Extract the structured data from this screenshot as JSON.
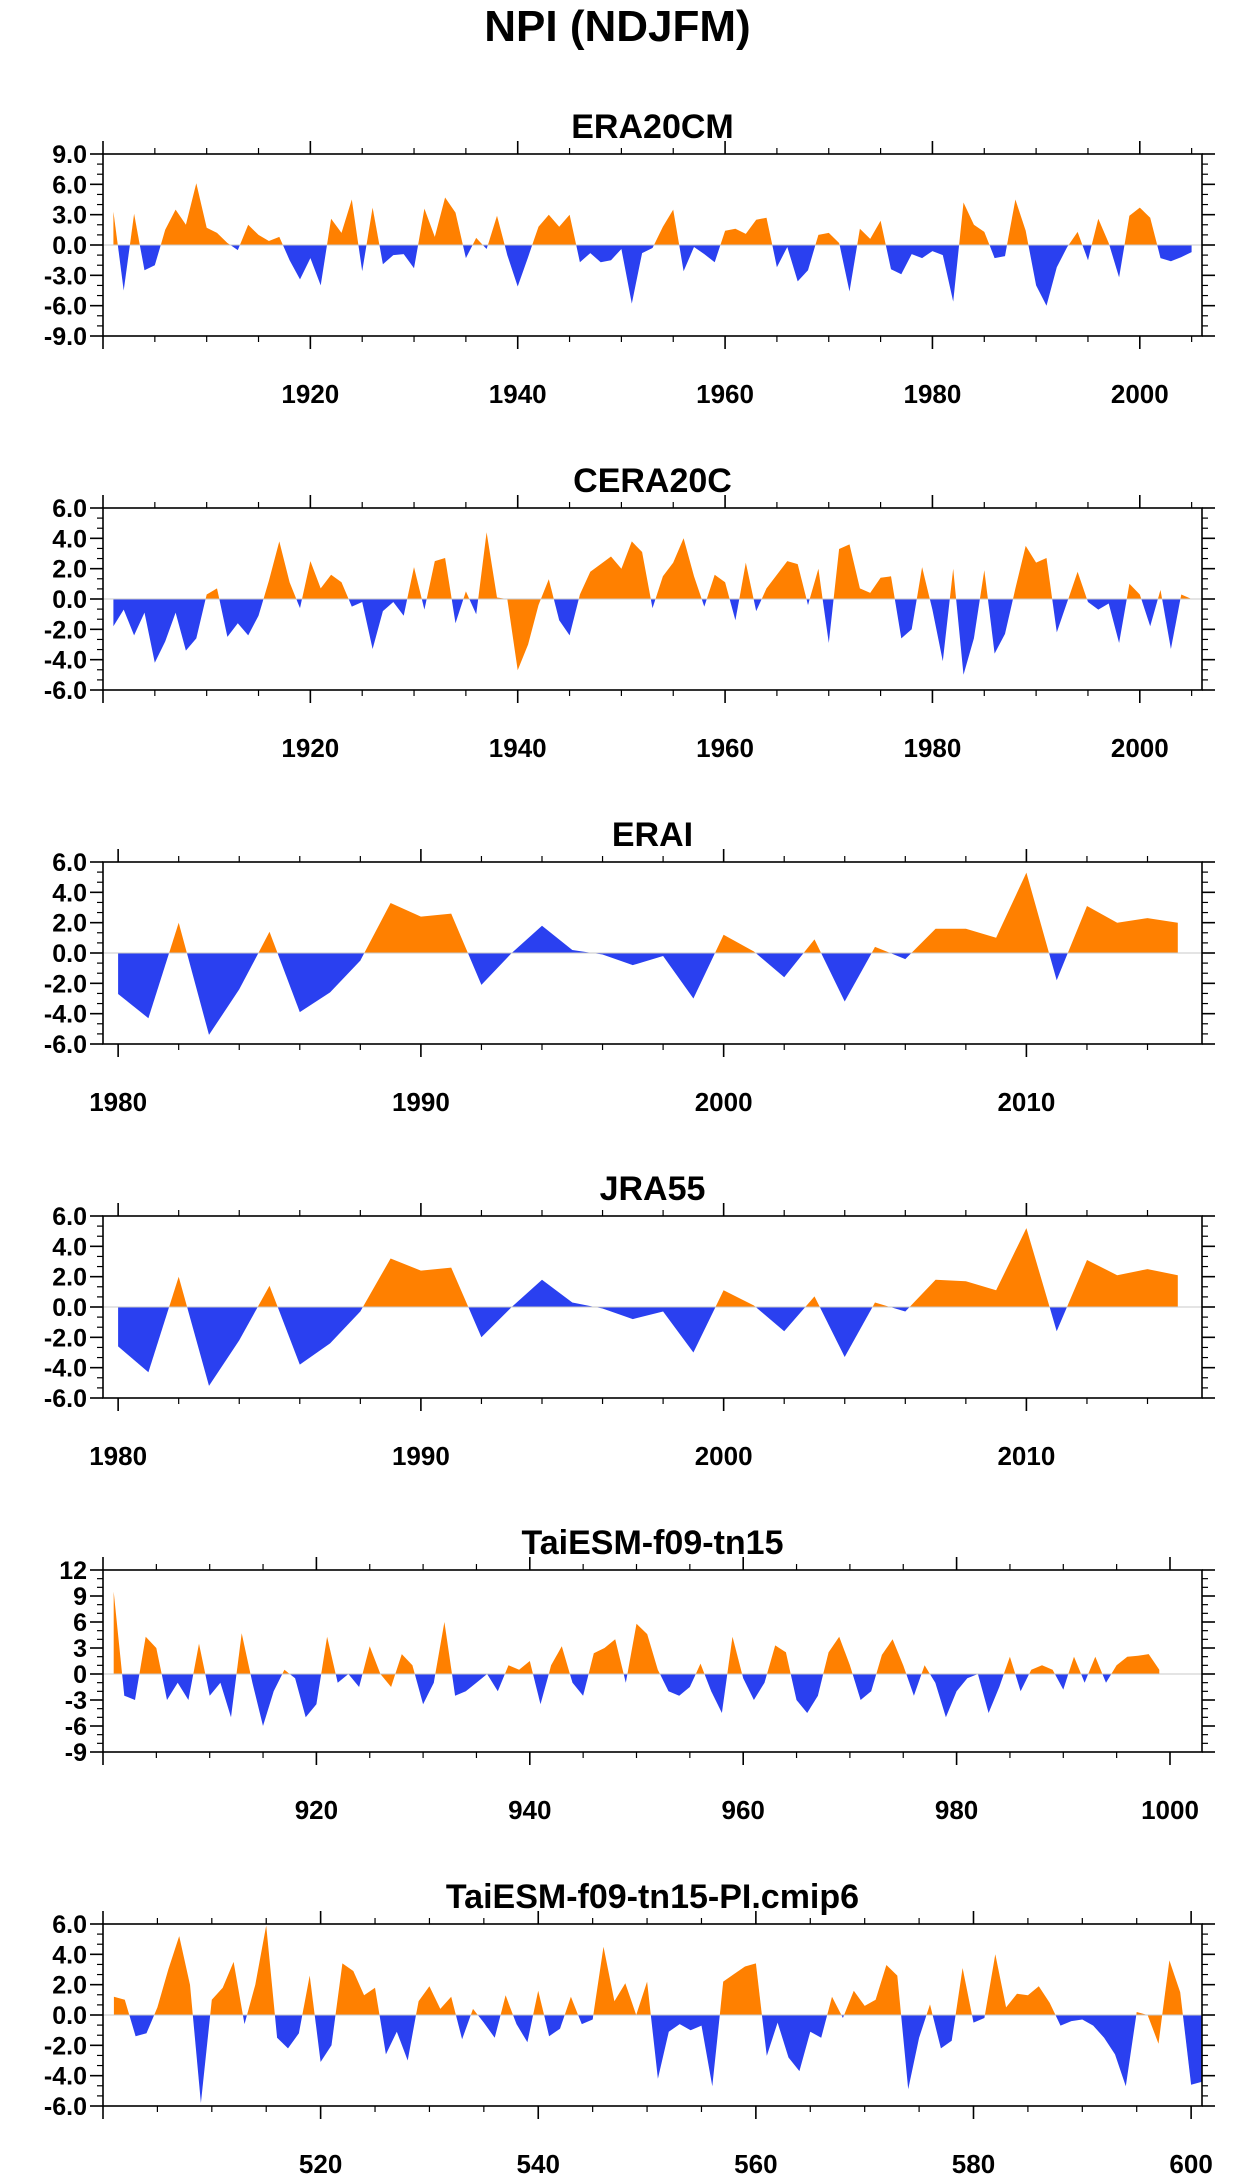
{
  "title": "NPI (NDJFM)",
  "colors": {
    "positive": "#ff8000",
    "negative": "#2a40f0",
    "axis": "#000000"
  },
  "chart_data": [
    {
      "type": "area",
      "title": "ERA20CM",
      "xlim": [
        1900,
        2006
      ],
      "ylim": [
        -9,
        9
      ],
      "yticks": [
        -9,
        -6,
        -3,
        0,
        3,
        6,
        9
      ],
      "ytick_labels": [
        "-9.0",
        "-6.0",
        "-3.0",
        "0.0",
        "3.0",
        "6.0",
        "9.0"
      ],
      "xticks": [
        1920,
        1940,
        1960,
        1980,
        2000
      ],
      "xtick_labels": [
        "1920",
        "1940",
        "1960",
        "1980",
        "2000"
      ],
      "x_start": 1901,
      "values": [
        3.3,
        -4.5,
        3.1,
        -2.5,
        -2.0,
        1.5,
        3.5,
        2.0,
        6.1,
        1.7,
        1.2,
        0.2,
        -0.5,
        2.0,
        1.0,
        0.4,
        0.8,
        -1.5,
        -3.4,
        -1.3,
        -4.0,
        2.6,
        1.2,
        4.5,
        -2.6,
        3.7,
        -1.9,
        -1.0,
        -0.9,
        -2.3,
        3.6,
        0.8,
        4.7,
        3.2,
        -1.3,
        0.7,
        -0.4,
        2.9,
        -1.0,
        -4.1,
        -1.2,
        1.8,
        3.0,
        1.8,
        3.0,
        -1.7,
        -0.8,
        -1.7,
        -1.5,
        -0.4,
        -5.8,
        -0.8,
        -0.3,
        1.8,
        3.5,
        -2.6,
        -0.2,
        -0.9,
        -1.7,
        1.4,
        1.6,
        1.1,
        2.5,
        2.7,
        -2.2,
        -0.2,
        -3.6,
        -2.5,
        1.0,
        1.2,
        0.2,
        -4.6,
        1.6,
        0.6,
        2.4,
        -2.4,
        -2.9,
        -0.9,
        -1.3,
        -0.6,
        -1.0,
        -5.6,
        4.2,
        2.0,
        1.3,
        -1.3,
        -1.1,
        4.5,
        1.4,
        -4.0,
        -6.0,
        -2.2,
        -0.2,
        1.3,
        -1.5,
        2.6,
        0.2,
        -3.2,
        2.9,
        3.7,
        2.7,
        -1.3,
        -1.6,
        -1.2,
        -0.7
      ]
    },
    {
      "type": "area",
      "title": "CERA20C",
      "xlim": [
        1900,
        2006
      ],
      "ylim": [
        -6,
        6
      ],
      "yticks": [
        -6,
        -4,
        -2,
        0,
        2,
        4,
        6
      ],
      "ytick_labels": [
        "-6.0",
        "-4.0",
        "-2.0",
        "0.0",
        "2.0",
        "4.0",
        "6.0"
      ],
      "xticks": [
        1920,
        1940,
        1960,
        1980,
        2000
      ],
      "xtick_labels": [
        "1920",
        "1940",
        "1960",
        "1980",
        "2000"
      ],
      "x_start": 1901,
      "values": [
        -1.8,
        -0.7,
        -2.4,
        -0.9,
        -4.2,
        -2.8,
        -0.9,
        -3.4,
        -2.6,
        0.3,
        0.7,
        -2.5,
        -1.6,
        -2.4,
        -1.1,
        1.2,
        3.8,
        1.1,
        -0.6,
        2.5,
        0.7,
        1.6,
        1.1,
        -0.5,
        -0.2,
        -3.3,
        -0.8,
        -0.2,
        -1.1,
        2.1,
        -0.7,
        2.5,
        2.7,
        -1.6,
        0.5,
        -1.0,
        4.4,
        0.1,
        0.0,
        -4.7,
        -3.0,
        -0.4,
        1.3,
        -1.4,
        -2.4,
        0.3,
        1.8,
        2.3,
        2.8,
        2.0,
        3.8,
        3.1,
        -0.6,
        1.5,
        2.4,
        4.0,
        1.5,
        -0.5,
        1.6,
        1.1,
        -1.4,
        2.4,
        -0.8,
        0.7,
        1.6,
        2.5,
        2.3,
        -0.4,
        2.0,
        -2.9,
        3.3,
        3.6,
        0.7,
        0.4,
        1.4,
        1.5,
        -2.6,
        -2.0,
        2.1,
        -0.7,
        -4.1,
        2.0,
        -5.0,
        -2.6,
        1.9,
        -3.6,
        -2.3,
        0.7,
        3.5,
        2.4,
        2.7,
        -2.2,
        -0.2,
        1.8,
        -0.2,
        -0.7,
        -0.3,
        -2.9,
        1.0,
        0.3,
        -1.8,
        0.6,
        -3.3,
        0.3,
        0.0
      ]
    },
    {
      "type": "area",
      "title": "ERAI",
      "xlim": [
        1979.5,
        2015.8
      ],
      "ylim": [
        -6,
        6
      ],
      "yticks": [
        -6,
        -4,
        -2,
        0,
        2,
        4,
        6
      ],
      "ytick_labels": [
        "-6.0",
        "-4.0",
        "-2.0",
        "0.0",
        "2.0",
        "4.0",
        "6.0"
      ],
      "xticks": [
        1980,
        1990,
        2000,
        2010
      ],
      "xtick_labels": [
        "1980",
        "1990",
        "2000",
        "2010"
      ],
      "x_start": 1980,
      "values": [
        -2.7,
        -4.3,
        2.0,
        -5.4,
        -2.4,
        1.4,
        -3.9,
        -2.6,
        -0.5,
        3.3,
        2.4,
        2.6,
        -2.1,
        0.0,
        1.8,
        0.2,
        -0.1,
        -0.8,
        -0.2,
        -3.0,
        1.2,
        0.1,
        -1.6,
        0.9,
        -3.2,
        0.4,
        -0.4,
        1.6,
        1.6,
        1.0,
        5.3,
        -1.8,
        3.1,
        2.0,
        2.3,
        2.0
      ]
    },
    {
      "type": "area",
      "title": "JRA55",
      "xlim": [
        1979.5,
        2015.8
      ],
      "ylim": [
        -6,
        6
      ],
      "yticks": [
        -6,
        -4,
        -2,
        0,
        2,
        4,
        6
      ],
      "ytick_labels": [
        "-6.0",
        "-4.0",
        "-2.0",
        "0.0",
        "2.0",
        "4.0",
        "6.0"
      ],
      "xticks": [
        1980,
        1990,
        2000,
        2010
      ],
      "xtick_labels": [
        "1980",
        "1990",
        "2000",
        "2010"
      ],
      "x_start": 1980,
      "values": [
        -2.6,
        -4.3,
        2.0,
        -5.2,
        -2.2,
        1.4,
        -3.8,
        -2.4,
        -0.3,
        3.2,
        2.4,
        2.6,
        -2.0,
        0.0,
        1.8,
        0.3,
        -0.1,
        -0.8,
        -0.3,
        -3.0,
        1.1,
        0.1,
        -1.6,
        0.7,
        -3.3,
        0.3,
        -0.3,
        1.8,
        1.7,
        1.1,
        5.2,
        -1.6,
        3.1,
        2.1,
        2.5,
        2.1
      ]
    },
    {
      "type": "area",
      "title": "TaiESM-f09-tn15",
      "xlim": [
        900,
        1003
      ],
      "ylim": [
        -9,
        12
      ],
      "yticks": [
        -9,
        -6,
        -3,
        0,
        3,
        6,
        9,
        12
      ],
      "ytick_labels": [
        "-9",
        "-6",
        "-3",
        "0",
        "3",
        "6",
        "9",
        "12"
      ],
      "xticks": [
        920,
        940,
        960,
        980,
        1000
      ],
      "xtick_labels": [
        "920",
        "940",
        "960",
        "980",
        "1000"
      ],
      "x_start": 901,
      "values": [
        9.5,
        -2.5,
        -3.0,
        4.3,
        3.0,
        -3.0,
        -1.0,
        -3.0,
        3.5,
        -2.5,
        -1.0,
        -5.0,
        4.7,
        -1.0,
        -6.0,
        -2.0,
        0.5,
        -0.5,
        -5.0,
        -3.5,
        4.3,
        -1.0,
        0.0,
        -1.5,
        3.2,
        0.0,
        -1.5,
        2.3,
        1.0,
        -3.5,
        -1.0,
        6.0,
        -2.5,
        -2.0,
        -1.0,
        0.0,
        -2.0,
        1.0,
        0.5,
        1.5,
        -3.5,
        1.0,
        3.2,
        -1.0,
        -2.5,
        2.4,
        3.0,
        4.0,
        -1.0,
        5.8,
        4.6,
        0.5,
        -2.0,
        -2.5,
        -1.5,
        1.2,
        -2.0,
        -4.5,
        4.3,
        -0.5,
        -3.0,
        -1.0,
        3.3,
        2.5,
        -3.0,
        -4.5,
        -2.5,
        2.5,
        4.3,
        1.0,
        -3.0,
        -2.0,
        2.2,
        4.0,
        1.0,
        -2.5,
        1.0,
        -1.0,
        -5.0,
        -2.0,
        -0.5,
        0.0,
        -4.5,
        -1.5,
        2.0,
        -2.0,
        0.5,
        1.0,
        0.5,
        -1.8,
        2.0,
        -1.0,
        2.0,
        -1.0,
        1.0,
        2.0,
        2.1,
        2.3,
        0.5
      ]
    },
    {
      "type": "area",
      "title": "TaiESM-f09-tn15-PI.cmip6",
      "xlim": [
        500,
        601
      ],
      "ylim": [
        -6,
        6
      ],
      "yticks": [
        -6,
        -4,
        -2,
        0,
        2,
        4,
        6
      ],
      "ytick_labels": [
        "-6.0",
        "-4.0",
        "-2.0",
        "0.0",
        "2.0",
        "4.0",
        "6.0"
      ],
      "xticks": [
        520,
        540,
        560,
        580,
        600
      ],
      "xtick_labels": [
        "520",
        "540",
        "560",
        "580",
        "600"
      ],
      "x_start": 501,
      "values": [
        1.2,
        1.0,
        -1.4,
        -1.2,
        0.5,
        3.0,
        5.2,
        2.0,
        -5.8,
        1.0,
        1.8,
        3.5,
        -0.6,
        2.0,
        5.9,
        -1.5,
        -2.2,
        -1.2,
        2.6,
        -3.1,
        -2.0,
        3.4,
        2.9,
        1.3,
        1.8,
        -2.6,
        -1.1,
        -3.0,
        0.9,
        1.9,
        0.4,
        1.2,
        -1.6,
        0.4,
        -0.5,
        -1.5,
        1.3,
        -0.6,
        -1.8,
        1.6,
        -1.4,
        -0.9,
        1.2,
        -0.6,
        -0.3,
        4.5,
        0.9,
        2.1,
        0.0,
        2.2,
        -4.2,
        -1.1,
        -0.6,
        -1.0,
        -0.7,
        -4.7,
        2.2,
        2.7,
        3.2,
        3.4,
        -2.7,
        -0.5,
        -2.8,
        -3.7,
        -1.1,
        -1.5,
        1.2,
        -0.2,
        1.6,
        0.6,
        1.0,
        3.3,
        2.6,
        -4.9,
        -1.5,
        0.7,
        -2.2,
        -1.7,
        3.1,
        -0.5,
        -0.2,
        4.0,
        0.5,
        1.4,
        1.3,
        1.9,
        0.8,
        -0.7,
        -0.4,
        -0.3,
        -0.7,
        -1.5,
        -2.6,
        -4.7,
        0.2,
        0.0,
        -1.9,
        3.6,
        1.5,
        -4.6,
        -4.4
      ]
    }
  ]
}
